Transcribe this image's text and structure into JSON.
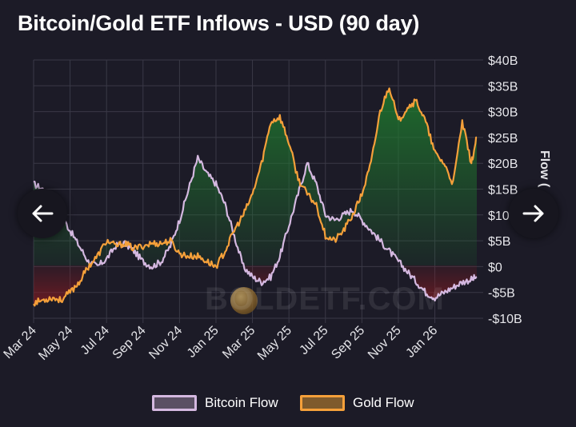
{
  "chart_data": {
    "type": "area",
    "title": "Bitcoin/Gold ETF Inflows - USD (90 day)",
    "ylabel": "Flow (",
    "xlabel": "",
    "ylim": [
      -10,
      40
    ],
    "y_ticks": [
      -10,
      -5,
      0,
      5,
      10,
      15,
      20,
      25,
      30,
      35,
      40
    ],
    "y_tick_labels": [
      "-$10B",
      "-$5B",
      "$0",
      "$5B",
      "$10B",
      "$15B",
      "$20B",
      "$25B",
      "$30B",
      "$35B",
      "$40B"
    ],
    "x_tick_labels": [
      "Mar 24",
      "May 24",
      "Jul 24",
      "Sep 24",
      "Nov 24",
      "Jan 25",
      "Mar 25",
      "May 25",
      "Jul 25",
      "Sep 25",
      "Nov 25",
      "Jan 26"
    ],
    "x_range": [
      0,
      24.3
    ],
    "series": [
      {
        "name": "Bitcoin Flow",
        "color": "#d4b8e0",
        "x": [
          0,
          0.5,
          1,
          1.5,
          2,
          2.5,
          3,
          3.5,
          4,
          4.5,
          5,
          5.5,
          6,
          6.5,
          7,
          7.5,
          8,
          8.5,
          9,
          9.5,
          10,
          10.5,
          11,
          11.5,
          12,
          12.5,
          13,
          13.5,
          14,
          14.5,
          15,
          15.5,
          16,
          16.5,
          17,
          17.5,
          18,
          18.5,
          19,
          19.5,
          20,
          20.5,
          21,
          21.5,
          22,
          22.5,
          23,
          23.5,
          24,
          24.3
        ],
        "y": [
          16,
          15,
          13,
          10,
          7,
          4,
          1,
          0,
          1.5,
          4,
          4.5,
          3,
          1,
          0,
          1,
          4,
          9,
          15,
          21,
          18,
          16,
          12,
          6,
          0,
          -2,
          -3,
          -2,
          2,
          8,
          14,
          20,
          16,
          10,
          9,
          10,
          11,
          9,
          7,
          5,
          3,
          1,
          -1,
          -3,
          -5,
          -6,
          -5,
          -4,
          -3,
          -2.5,
          -2
        ]
      },
      {
        "name": "Gold Flow",
        "color": "#f5a03a",
        "x": [
          0,
          0.5,
          1,
          1.5,
          2,
          2.5,
          3,
          3.5,
          4,
          4.5,
          5,
          5.5,
          6,
          6.5,
          7,
          7.5,
          8,
          8.5,
          9,
          9.5,
          10,
          10.5,
          11,
          11.5,
          12,
          12.5,
          13,
          13.5,
          14,
          14.5,
          15,
          15.5,
          16,
          16.5,
          17,
          17.5,
          18,
          18.5,
          19,
          19.5,
          20,
          20.5,
          21,
          21.5,
          22,
          22.5,
          23,
          23.5,
          24,
          24.3
        ],
        "y": [
          -7,
          -6.5,
          -6,
          -6.5,
          -5,
          -3,
          0,
          2,
          5,
          4,
          4.5,
          3.5,
          4,
          4.5,
          4.5,
          5,
          2.5,
          2,
          2,
          1,
          0,
          3,
          7,
          10,
          14,
          20,
          28,
          29,
          24,
          17,
          14,
          12,
          6,
          5,
          7,
          10,
          14,
          20,
          30,
          35,
          28,
          31,
          32,
          28,
          22,
          20,
          16,
          28,
          20,
          25
        ]
      }
    ]
  },
  "legend": {
    "bitcoin_label": "Bitcoin Flow",
    "gold_label": "Gold Flow"
  },
  "watermark": {
    "text": "BOLDETF.COM"
  },
  "nav": {
    "prev_icon": "left-arrow-icon",
    "next_icon": "right-arrow-icon"
  },
  "colors": {
    "background": "#1c1b27",
    "bitcoin": "#d4b8e0",
    "gold": "#f5a03a",
    "positive_fill": "#1f7a2e",
    "negative_fill": "#8a1b22"
  }
}
